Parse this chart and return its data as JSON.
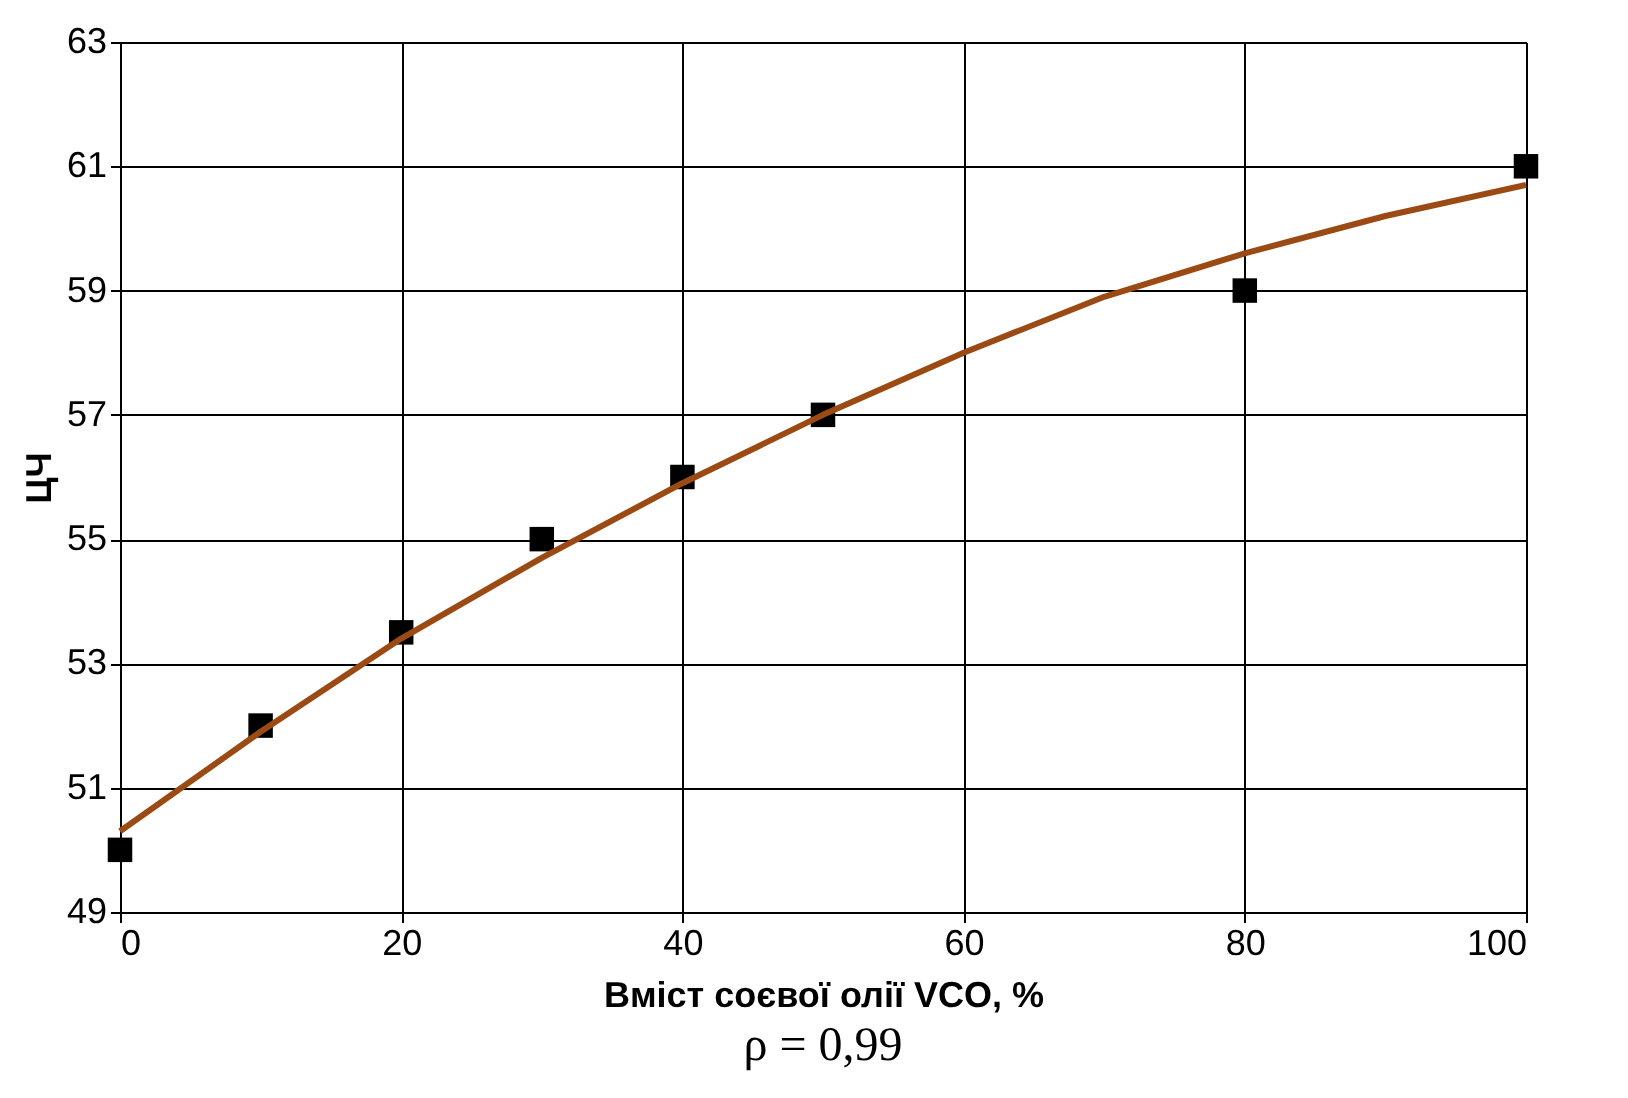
{
  "chart_data": {
    "type": "scatter",
    "xlabel": "Вміст соєвої олії VCO, %",
    "ylabel": "ЦЧ",
    "annotations": [
      "ρ = 0,99"
    ],
    "xlim": [
      0,
      100
    ],
    "xticks": [
      0,
      20,
      40,
      60,
      80,
      100
    ],
    "ylim": [
      49,
      63
    ],
    "yticks": [
      49,
      51,
      53,
      55,
      57,
      59,
      61,
      63
    ],
    "grid": true,
    "series": [
      {
        "color": "#000000",
        "marker": "square",
        "x": [
          0,
          10,
          20,
          30,
          40,
          50,
          80,
          100
        ],
        "values": [
          50,
          52,
          53.5,
          55,
          56,
          57,
          59,
          61
        ]
      },
      {
        "type": "line",
        "color": "#9c4a14",
        "line_style": "solid",
        "x": [
          0,
          10,
          20,
          30,
          40,
          50,
          60,
          70,
          80,
          90,
          100
        ],
        "values": [
          50.3,
          51.9,
          53.4,
          54.7,
          55.9,
          57.0,
          58.0,
          58.9,
          59.6,
          60.2,
          60.7
        ]
      }
    ]
  }
}
